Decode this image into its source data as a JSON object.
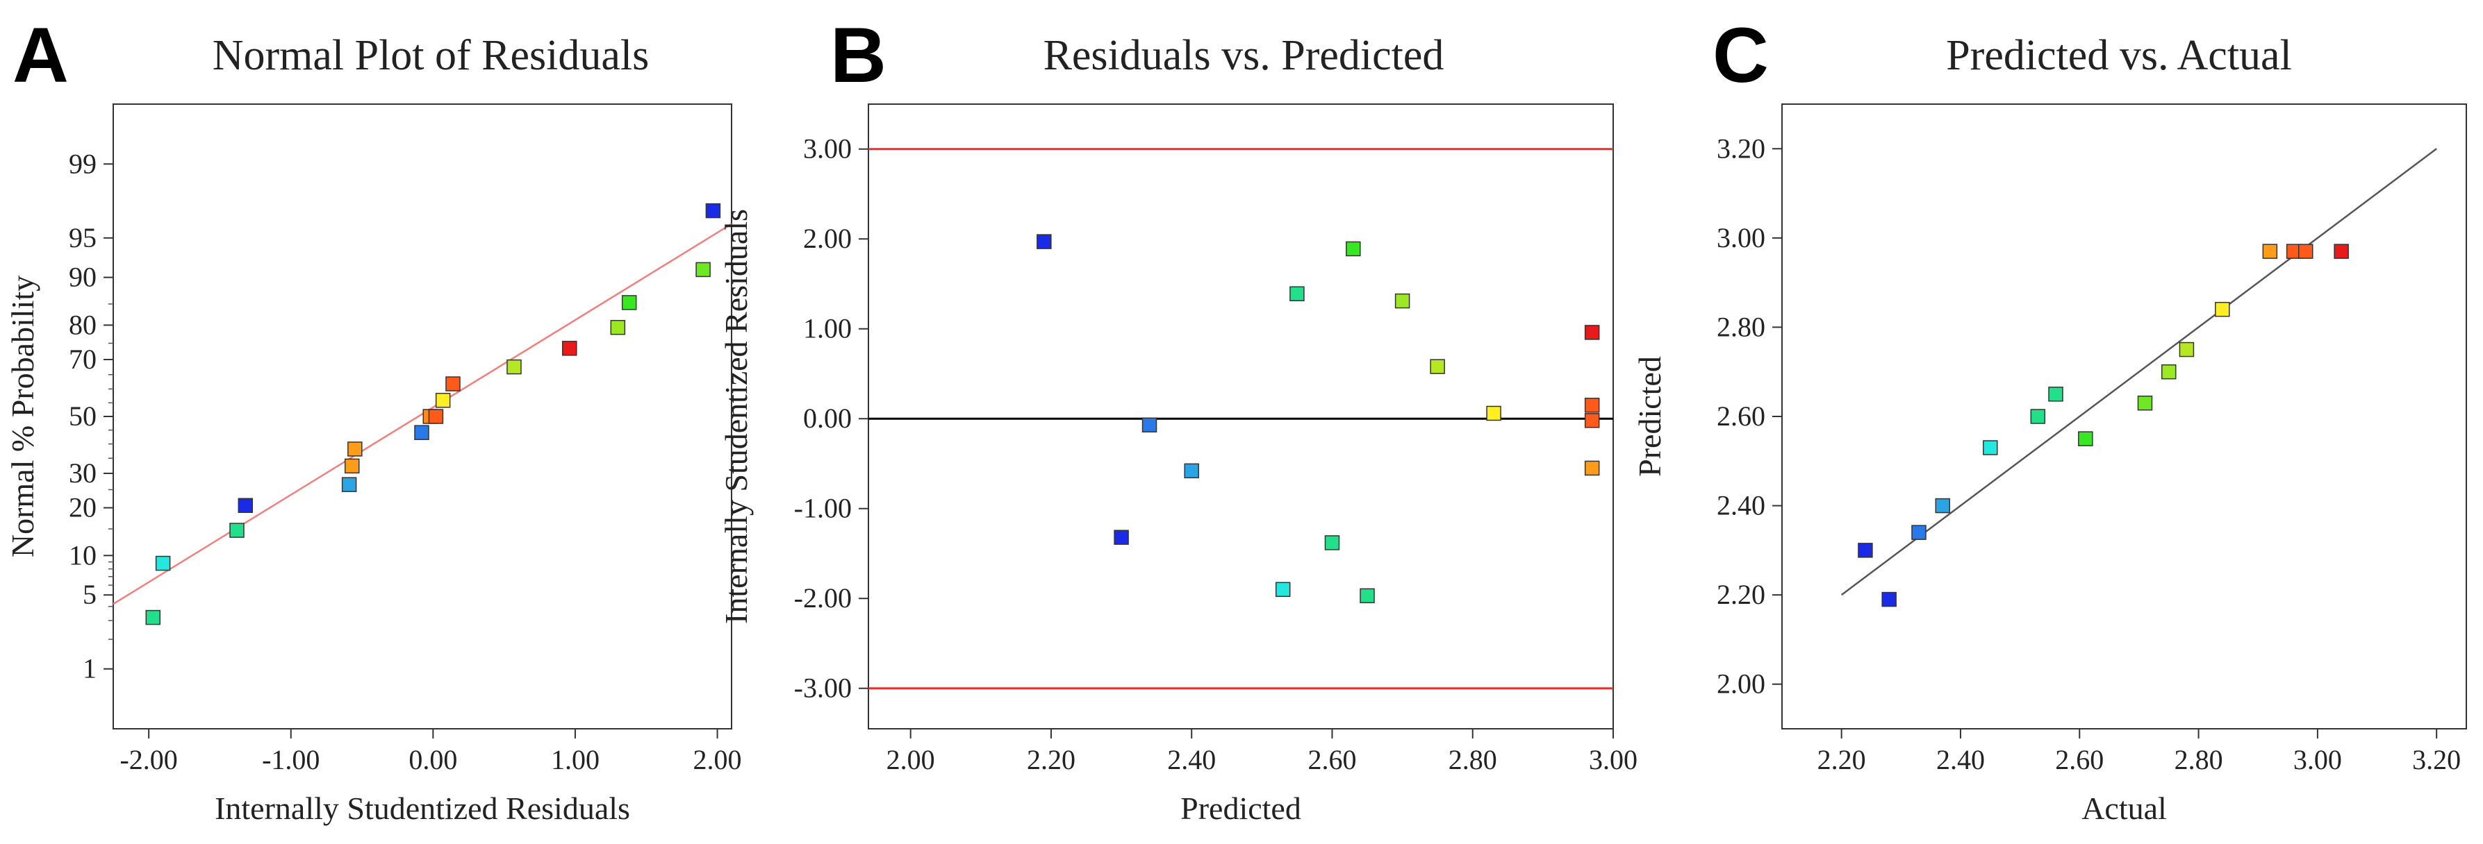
{
  "chart_data": [
    {
      "panel": "A",
      "type": "scatter",
      "title": "Normal Plot of Residuals",
      "xlabel": "Internally Studentized Residuals",
      "ylabel": "Normal % Probability",
      "xlim": [
        -2.25,
        2.1
      ],
      "xticks": [
        -2.0,
        -1.0,
        0.0,
        1.0,
        2.0
      ],
      "xtick_labels": [
        "-2.00",
        "-1.00",
        "0.00",
        "1.00",
        "2.00"
      ],
      "yscale": "probit",
      "ylim": [
        0.2,
        99.8
      ],
      "yticks": [
        1,
        5,
        10,
        20,
        30,
        50,
        70,
        80,
        90,
        95,
        99
      ],
      "ytick_labels": [
        "1",
        "5",
        "10",
        "20",
        "30",
        "50",
        "70",
        "80",
        "90",
        "95",
        "99"
      ],
      "fit_line": {
        "x": [
          -2.25,
          2.1
        ],
        "y": [
          4.2,
          96.2
        ],
        "color": "#f08080"
      },
      "points": [
        {
          "x": -1.97,
          "y": 3.2,
          "color": "#22e089"
        },
        {
          "x": -1.9,
          "y": 8.8,
          "color": "#22e8e0"
        },
        {
          "x": -1.38,
          "y": 14.7,
          "color": "#22e089"
        },
        {
          "x": -1.32,
          "y": 20.6,
          "color": "#1a2be8"
        },
        {
          "x": -0.59,
          "y": 26.5,
          "color": "#2ba4e6"
        },
        {
          "x": -0.57,
          "y": 32.4,
          "color": "#ff9d1a"
        },
        {
          "x": -0.55,
          "y": 38.2,
          "color": "#ff9d1a"
        },
        {
          "x": -0.08,
          "y": 44.1,
          "color": "#2a79e8"
        },
        {
          "x": -0.02,
          "y": 50.0,
          "color": "#ff8a1a"
        },
        {
          "x": 0.02,
          "y": 50.0,
          "color": "#ff5a1a"
        },
        {
          "x": 0.07,
          "y": 55.9,
          "color": "#ffee22"
        },
        {
          "x": 0.14,
          "y": 61.8,
          "color": "#ff5a1a"
        },
        {
          "x": 0.57,
          "y": 67.6,
          "color": "#b5e822"
        },
        {
          "x": 0.96,
          "y": 73.5,
          "color": "#e81a1a"
        },
        {
          "x": 1.3,
          "y": 79.4,
          "color": "#9ce822"
        },
        {
          "x": 1.38,
          "y": 85.3,
          "color": "#38e622"
        },
        {
          "x": 1.9,
          "y": 91.2,
          "color": "#6ee822"
        },
        {
          "x": 1.97,
          "y": 97.1,
          "color": "#1a2be8"
        }
      ]
    },
    {
      "panel": "B",
      "type": "scatter",
      "title": "Residuals vs. Predicted",
      "xlabel": "Predicted",
      "ylabel": "Internally Studentized Residuals",
      "xlim": [
        1.94,
        3.0
      ],
      "ylim": [
        -3.45,
        3.5
      ],
      "xticks": [
        2.0,
        2.2,
        2.4,
        2.6,
        2.8,
        3.0
      ],
      "xtick_labels": [
        "2.00",
        "2.20",
        "2.40",
        "2.60",
        "2.80",
        "3.00"
      ],
      "yticks": [
        -3.0,
        -2.0,
        -1.0,
        0.0,
        1.0,
        2.0,
        3.0
      ],
      "ytick_labels": [
        "-3.00",
        "-2.00",
        "-1.00",
        "0.00",
        "1.00",
        "2.00",
        "3.00"
      ],
      "hlines": [
        {
          "y": 3.0,
          "color": "#e83030"
        },
        {
          "y": 0.0,
          "color": "#000000"
        },
        {
          "y": -3.0,
          "color": "#e83030"
        }
      ],
      "points": [
        {
          "x": 2.19,
          "y": 1.97,
          "color": "#1a2be8"
        },
        {
          "x": 2.3,
          "y": -1.32,
          "color": "#1a2be8"
        },
        {
          "x": 2.34,
          "y": -0.07,
          "color": "#2a79e8"
        },
        {
          "x": 2.4,
          "y": -0.58,
          "color": "#2ba4e6"
        },
        {
          "x": 2.53,
          "y": -1.9,
          "color": "#22e8e0"
        },
        {
          "x": 2.55,
          "y": 1.39,
          "color": "#22e089"
        },
        {
          "x": 2.6,
          "y": -1.38,
          "color": "#22e089"
        },
        {
          "x": 2.63,
          "y": 1.89,
          "color": "#38e622"
        },
        {
          "x": 2.65,
          "y": -1.97,
          "color": "#22e089"
        },
        {
          "x": 2.7,
          "y": 1.31,
          "color": "#9ce822"
        },
        {
          "x": 2.75,
          "y": 0.58,
          "color": "#b5e822"
        },
        {
          "x": 2.83,
          "y": 0.06,
          "color": "#ffee22"
        },
        {
          "x": 2.97,
          "y": 0.96,
          "color": "#e81a1a"
        },
        {
          "x": 2.97,
          "y": 0.15,
          "color": "#ff5a1a"
        },
        {
          "x": 2.97,
          "y": -0.02,
          "color": "#ff5a1a"
        },
        {
          "x": 2.97,
          "y": -0.55,
          "color": "#ff9d1a"
        }
      ]
    },
    {
      "panel": "C",
      "type": "scatter",
      "title": "Predicted vs. Actual",
      "xlabel": "Actual",
      "ylabel": "Predicted",
      "xlim": [
        2.1,
        3.25
      ],
      "ylim": [
        1.9,
        3.3
      ],
      "xticks": [
        2.2,
        2.4,
        2.6,
        2.8,
        3.0,
        3.2
      ],
      "xtick_labels": [
        "2.20",
        "2.40",
        "2.60",
        "2.80",
        "3.00",
        "3.20"
      ],
      "yticks": [
        2.0,
        2.2,
        2.4,
        2.6,
        2.8,
        3.0,
        3.2
      ],
      "ytick_labels": [
        "2.00",
        "2.20",
        "2.40",
        "2.60",
        "2.80",
        "3.00",
        "3.20"
      ],
      "fit_line": {
        "x": [
          2.2,
          3.2
        ],
        "y": [
          2.2,
          3.2
        ],
        "color": "#555555"
      },
      "points": [
        {
          "x": 2.24,
          "y": 2.3,
          "color": "#1a2be8"
        },
        {
          "x": 2.28,
          "y": 2.19,
          "color": "#1a2be8"
        },
        {
          "x": 2.33,
          "y": 2.34,
          "color": "#2a79e8"
        },
        {
          "x": 2.37,
          "y": 2.4,
          "color": "#2ba4e6"
        },
        {
          "x": 2.45,
          "y": 2.53,
          "color": "#22e8e0"
        },
        {
          "x": 2.53,
          "y": 2.6,
          "color": "#22e089"
        },
        {
          "x": 2.56,
          "y": 2.65,
          "color": "#22e089"
        },
        {
          "x": 2.61,
          "y": 2.55,
          "color": "#38e622"
        },
        {
          "x": 2.71,
          "y": 2.63,
          "color": "#6ee822"
        },
        {
          "x": 2.75,
          "y": 2.7,
          "color": "#9ce822"
        },
        {
          "x": 2.78,
          "y": 2.75,
          "color": "#b5e822"
        },
        {
          "x": 2.84,
          "y": 2.84,
          "color": "#ffee22"
        },
        {
          "x": 2.92,
          "y": 2.97,
          "color": "#ff9d1a"
        },
        {
          "x": 2.96,
          "y": 2.97,
          "color": "#ff5a1a"
        },
        {
          "x": 2.98,
          "y": 2.97,
          "color": "#ff5a1a"
        },
        {
          "x": 3.04,
          "y": 2.97,
          "color": "#e81a1a"
        }
      ]
    }
  ]
}
